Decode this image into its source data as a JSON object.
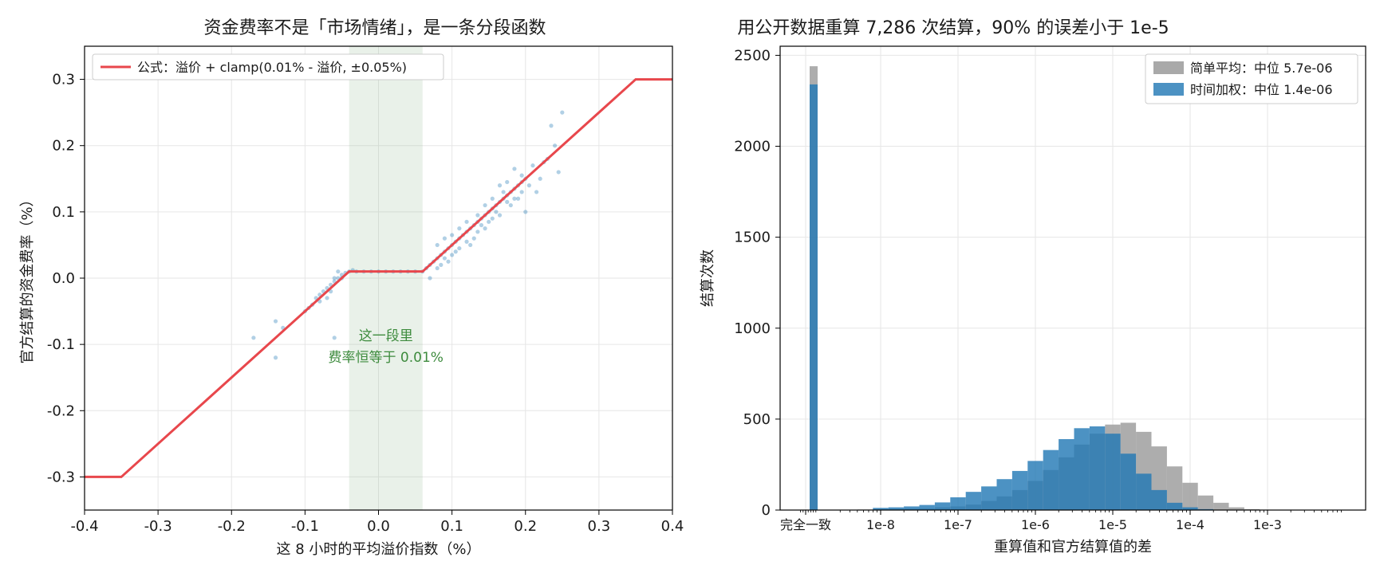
{
  "chart_data": [
    {
      "type": "scatter",
      "title": "资金费率不是「市场情绪」，是一条分段函数",
      "xlabel": "这 8 小时的平均溢价指数（%）",
      "ylabel": "官方结算的资金费率（%）",
      "xlim": [
        -0.4,
        0.4
      ],
      "ylim": [
        -0.35,
        0.35
      ],
      "xticks": [
        -0.4,
        -0.3,
        -0.2,
        -0.1,
        0.0,
        0.1,
        0.2,
        0.3,
        0.4
      ],
      "xtick_labels": [
        "-0.4",
        "-0.3",
        "-0.2",
        "-0.1",
        "0.0",
        "0.1",
        "0.2",
        "0.3",
        "0.4"
      ],
      "yticks": [
        -0.3,
        -0.2,
        -0.1,
        0.0,
        0.1,
        0.2,
        0.3
      ],
      "ytick_labels": [
        "-0.3",
        "-0.2",
        "-0.1",
        "0.0",
        "0.1",
        "0.2",
        "0.3"
      ],
      "grid": true,
      "legend_position": "top-left",
      "line": {
        "name": "公式：溢价 + clamp(0.01% - 溢价, ±0.05%)",
        "color": "#e8474c",
        "x": [
          -0.4,
          -0.35,
          -0.04,
          0.06,
          0.35,
          0.4
        ],
        "y": [
          -0.3,
          -0.3,
          0.01,
          0.01,
          0.3,
          0.3
        ]
      },
      "band": {
        "x_range": [
          -0.04,
          0.06
        ],
        "color": "#8fb98f",
        "annotation_line1": "这一段里",
        "annotation_line2": "费率恒等于 0.01%",
        "annotation_at": [
          0.01,
          -0.1
        ]
      },
      "scatter": {
        "color": "#1f77b4",
        "points": [
          [
            -0.17,
            -0.09
          ],
          [
            -0.14,
            -0.12
          ],
          [
            -0.14,
            -0.065
          ],
          [
            -0.13,
            -0.075
          ],
          [
            -0.06,
            -0.09
          ],
          [
            -0.1,
            -0.05
          ],
          [
            -0.095,
            -0.045
          ],
          [
            -0.09,
            -0.04
          ],
          [
            -0.085,
            -0.03
          ],
          [
            -0.08,
            -0.025
          ],
          [
            -0.075,
            -0.02
          ],
          [
            -0.07,
            -0.015
          ],
          [
            -0.065,
            -0.01
          ],
          [
            -0.06,
            -0.005
          ],
          [
            -0.055,
            0.0
          ],
          [
            -0.05,
            0.005
          ],
          [
            -0.045,
            0.008
          ],
          [
            -0.08,
            -0.035
          ],
          [
            -0.07,
            -0.03
          ],
          [
            -0.065,
            -0.02
          ],
          [
            -0.06,
            0.0
          ],
          [
            -0.055,
            0.01
          ],
          [
            -0.05,
            0.0
          ],
          [
            -0.04,
            0.01
          ],
          [
            -0.03,
            0.01
          ],
          [
            -0.02,
            0.01
          ],
          [
            -0.01,
            0.01
          ],
          [
            0.0,
            0.01
          ],
          [
            0.01,
            0.01
          ],
          [
            0.02,
            0.01
          ],
          [
            0.03,
            0.01
          ],
          [
            0.04,
            0.01
          ],
          [
            0.05,
            0.01
          ],
          [
            0.06,
            0.01
          ],
          [
            -0.035,
            0.012
          ],
          [
            0.065,
            0.015
          ],
          [
            0.07,
            0.02
          ],
          [
            0.075,
            0.025
          ],
          [
            0.08,
            0.03
          ],
          [
            0.085,
            0.035
          ],
          [
            0.09,
            0.04
          ],
          [
            0.095,
            0.045
          ],
          [
            0.1,
            0.05
          ],
          [
            0.105,
            0.055
          ],
          [
            0.11,
            0.06
          ],
          [
            0.115,
            0.065
          ],
          [
            0.12,
            0.07
          ],
          [
            0.125,
            0.075
          ],
          [
            0.13,
            0.08
          ],
          [
            0.135,
            0.085
          ],
          [
            0.14,
            0.09
          ],
          [
            0.145,
            0.095
          ],
          [
            0.15,
            0.1
          ],
          [
            0.155,
            0.105
          ],
          [
            0.16,
            0.11
          ],
          [
            0.165,
            0.115
          ],
          [
            0.17,
            0.12
          ],
          [
            0.175,
            0.125
          ],
          [
            0.18,
            0.13
          ],
          [
            0.185,
            0.135
          ],
          [
            0.19,
            0.14
          ],
          [
            0.195,
            0.145
          ],
          [
            0.2,
            0.15
          ],
          [
            0.08,
            0.05
          ],
          [
            0.09,
            0.03
          ],
          [
            0.1,
            0.035
          ],
          [
            0.11,
            0.045
          ],
          [
            0.12,
            0.055
          ],
          [
            0.13,
            0.06
          ],
          [
            0.14,
            0.08
          ],
          [
            0.15,
            0.085
          ],
          [
            0.16,
            0.1
          ],
          [
            0.17,
            0.13
          ],
          [
            0.18,
            0.11
          ],
          [
            0.19,
            0.12
          ],
          [
            0.07,
            0.0
          ],
          [
            0.08,
            0.015
          ],
          [
            0.095,
            0.025
          ],
          [
            0.105,
            0.04
          ],
          [
            0.125,
            0.05
          ],
          [
            0.135,
            0.07
          ],
          [
            0.145,
            0.075
          ],
          [
            0.155,
            0.09
          ],
          [
            0.165,
            0.095
          ],
          [
            0.175,
            0.115
          ],
          [
            0.185,
            0.12
          ],
          [
            0.195,
            0.13
          ],
          [
            0.205,
            0.14
          ],
          [
            0.21,
            0.17
          ],
          [
            0.22,
            0.15
          ],
          [
            0.23,
            0.18
          ],
          [
            0.24,
            0.2
          ],
          [
            0.25,
            0.25
          ],
          [
            0.245,
            0.16
          ],
          [
            0.215,
            0.13
          ],
          [
            0.2,
            0.1
          ],
          [
            0.225,
            0.175
          ],
          [
            0.235,
            0.23
          ],
          [
            0.195,
            0.155
          ],
          [
            0.185,
            0.165
          ],
          [
            0.175,
            0.145
          ],
          [
            0.165,
            0.14
          ],
          [
            0.155,
            0.12
          ],
          [
            0.145,
            0.11
          ],
          [
            0.135,
            0.095
          ],
          [
            0.12,
            0.085
          ],
          [
            0.11,
            0.075
          ],
          [
            0.1,
            0.065
          ],
          [
            0.09,
            0.06
          ],
          [
            0.085,
            0.02
          ]
        ]
      }
    },
    {
      "type": "bar",
      "title": "用公开数据重算 7,286 次结算，90% 的误差小于 1e-5",
      "xlabel": "重算值和官方结算值的差",
      "ylabel": "结算次数",
      "x_scale": "log",
      "ylim": [
        0,
        2550
      ],
      "yticks": [
        0,
        500,
        1000,
        1500,
        2000,
        2500
      ],
      "ytick_labels": [
        "0",
        "500",
        "1000",
        "1500",
        "2000",
        "2500"
      ],
      "xticks": [
        "完全一致",
        "1e-8",
        "1e-7",
        "1e-6",
        "1e-5",
        "1e-4",
        "1e-3"
      ],
      "grid": true,
      "legend_position": "top-right",
      "series": [
        {
          "name": "简单平均：中位 5.7e-06",
          "color": "#a9a9a9",
          "exact_match_count": 2440,
          "bins_log10_center": [
            -8.2,
            -8.0,
            -7.8,
            -7.6,
            -7.4,
            -7.2,
            -7.0,
            -6.8,
            -6.6,
            -6.4,
            -6.2,
            -6.0,
            -5.8,
            -5.6,
            -5.4,
            -5.2,
            -5.0,
            -4.8,
            -4.6,
            -4.4,
            -4.2,
            -4.0,
            -3.8,
            -3.6,
            -3.4,
            -3.2,
            -3.0
          ],
          "counts": [
            3,
            5,
            6,
            8,
            10,
            15,
            20,
            30,
            50,
            75,
            110,
            160,
            220,
            290,
            360,
            420,
            470,
            480,
            430,
            350,
            240,
            150,
            80,
            40,
            15,
            5,
            2
          ]
        },
        {
          "name": "时间加权：中位 1.4e-06",
          "color": "#1f77b4",
          "exact_match_count": 2340,
          "bins_log10_center": [
            -8.0,
            -7.8,
            -7.6,
            -7.4,
            -7.2,
            -7.0,
            -6.8,
            -6.6,
            -6.4,
            -6.2,
            -6.0,
            -5.8,
            -5.6,
            -5.4,
            -5.2,
            -5.0,
            -4.8,
            -4.6,
            -4.4,
            -4.2,
            -4.0,
            -3.8
          ],
          "counts": [
            12,
            15,
            20,
            28,
            42,
            70,
            100,
            130,
            170,
            215,
            270,
            330,
            390,
            450,
            460,
            420,
            310,
            200,
            110,
            40,
            15,
            5
          ]
        }
      ]
    }
  ]
}
